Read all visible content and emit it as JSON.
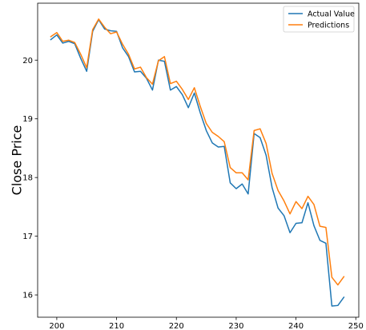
{
  "chart_data": {
    "type": "line",
    "title": "",
    "xlabel": "",
    "ylabel": "Close Price",
    "xlim": [
      196.8,
      250.5
    ],
    "ylim": [
      15.62,
      20.97
    ],
    "xticks": [
      200,
      210,
      220,
      230,
      240,
      250
    ],
    "yticks": [
      16,
      17,
      18,
      19,
      20
    ],
    "xtick_labels": [
      "200",
      "210",
      "220",
      "230",
      "240",
      "250"
    ],
    "ytick_labels": [
      "16",
      "17",
      "18",
      "19",
      "20"
    ],
    "grid": false,
    "legend_position": "top-right",
    "x": [
      199,
      200,
      201,
      202,
      203,
      204,
      205,
      206,
      207,
      208,
      209,
      210,
      211,
      212,
      213,
      214,
      215,
      216,
      217,
      218,
      219,
      220,
      221,
      222,
      223,
      224,
      225,
      226,
      227,
      228,
      229,
      230,
      231,
      232,
      233,
      234,
      235,
      236,
      237,
      238,
      239,
      240,
      241,
      242,
      243,
      244,
      245,
      246,
      247,
      248
    ],
    "series": [
      {
        "name": "Actual Value",
        "color": "#1f77b4",
        "values": [
          20.35,
          20.43,
          20.29,
          20.32,
          20.28,
          20.03,
          19.81,
          20.49,
          20.69,
          20.53,
          20.5,
          20.49,
          20.21,
          20.06,
          19.8,
          19.81,
          19.69,
          19.49,
          20.0,
          19.98,
          19.49,
          19.55,
          19.41,
          19.19,
          19.44,
          19.1,
          18.8,
          18.59,
          18.52,
          18.53,
          17.91,
          17.81,
          17.89,
          17.72,
          18.75,
          18.68,
          18.38,
          17.83,
          17.48,
          17.35,
          17.06,
          17.22,
          17.23,
          17.57,
          17.18,
          16.93,
          16.88,
          15.81,
          15.82,
          15.96
        ]
      },
      {
        "name": "Predictions",
        "color": "#ff7f0e",
        "values": [
          20.4,
          20.47,
          20.32,
          20.34,
          20.3,
          20.1,
          19.87,
          20.52,
          20.7,
          20.56,
          20.45,
          20.48,
          20.27,
          20.1,
          19.85,
          19.88,
          19.7,
          19.59,
          19.99,
          20.06,
          19.6,
          19.64,
          19.5,
          19.33,
          19.53,
          19.21,
          18.92,
          18.77,
          18.7,
          18.61,
          18.17,
          18.08,
          18.08,
          17.96,
          18.8,
          18.83,
          18.58,
          18.07,
          17.78,
          17.6,
          17.38,
          17.59,
          17.47,
          17.68,
          17.54,
          17.17,
          17.15,
          16.3,
          16.17,
          16.31
        ]
      }
    ]
  }
}
